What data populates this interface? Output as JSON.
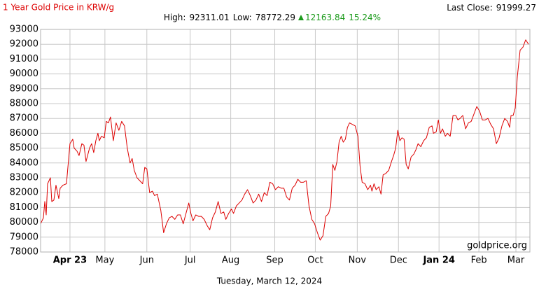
{
  "chart_data": {
    "type": "line",
    "title": "1 Year Gold Price in KRW/g",
    "last_close_label": "Last Close:",
    "last_close": 91999.27,
    "high_label": "High:",
    "high": 92311.01,
    "low_label": "Low:",
    "low": 78772.29,
    "change": 12163.84,
    "change_pct": "15.24%",
    "date": "Tuesday, March 12, 2024",
    "source": "goldprice.org",
    "color": "#dd0000",
    "grid": true,
    "xlim": [
      0,
      350
    ],
    "ylim": [
      78000,
      93000
    ],
    "yticks": [
      78000,
      79000,
      80000,
      81000,
      82000,
      83000,
      84000,
      85000,
      86000,
      87000,
      88000,
      89000,
      90000,
      91000,
      92000,
      93000
    ],
    "xticks": [
      {
        "value": 21,
        "label": "Apr 23"
      },
      {
        "value": 46,
        "label": "May"
      },
      {
        "value": 76,
        "label": "Jun"
      },
      {
        "value": 107,
        "label": "Jul"
      },
      {
        "value": 136,
        "label": "Aug"
      },
      {
        "value": 167.5,
        "label": "Sep"
      },
      {
        "value": 196.5,
        "label": "Oct"
      },
      {
        "value": 226.5,
        "label": "Nov"
      },
      {
        "value": 256,
        "label": "Dec"
      },
      {
        "value": 285,
        "label": "Jan 24"
      },
      {
        "value": 313.5,
        "label": "Feb"
      },
      {
        "value": 340,
        "label": "Mar"
      }
    ],
    "x": [
      0,
      2,
      3,
      4,
      5,
      7,
      8,
      9.5,
      11,
      13,
      14,
      16,
      18.5,
      21,
      23,
      24,
      26,
      27.5,
      29.5,
      31,
      32.5,
      35,
      36.5,
      38,
      39.5,
      41,
      42,
      43.5,
      45.5,
      47,
      48.5,
      50,
      52,
      54,
      56,
      58,
      60,
      62,
      64,
      65.5,
      67,
      69,
      71,
      73,
      74.5,
      76,
      78,
      80,
      81.5,
      83.5,
      86,
      88,
      90,
      92,
      94,
      96,
      98,
      100,
      102,
      104,
      106,
      107.5,
      109,
      111,
      113,
      115,
      117,
      119,
      121,
      123,
      125,
      127,
      129,
      131,
      132.5,
      134.5,
      136.5,
      138,
      140,
      142,
      144,
      146,
      148,
      150,
      152,
      154,
      156,
      158,
      160,
      162,
      164,
      166,
      168,
      170,
      172,
      174,
      176,
      178,
      180,
      182,
      184,
      186,
      188,
      190,
      192,
      194,
      196,
      198,
      200,
      202,
      204,
      206,
      207.5,
      209,
      210.5,
      212,
      213.5,
      215,
      216.5,
      218,
      219.5,
      221,
      223,
      225,
      227,
      228.5,
      230,
      232,
      234,
      236,
      237,
      238.5,
      240,
      242,
      243.5,
      245,
      247,
      249,
      251,
      252.5,
      254,
      255.5,
      257,
      258.5,
      260,
      261.5,
      263,
      265,
      267,
      268.5,
      270,
      272,
      274,
      276,
      278,
      280,
      281,
      283,
      284.5,
      286,
      287.5,
      289.5,
      291,
      293,
      295,
      297,
      298.5,
      300,
      302,
      304,
      306,
      308,
      310,
      312,
      314,
      316,
      318,
      320,
      322,
      324,
      326,
      328,
      330,
      332,
      334,
      335.5,
      336.5,
      338,
      339.5,
      341,
      343,
      345,
      347,
      349
    ],
    "values": [
      79900,
      80300,
      81400,
      80500,
      82600,
      83000,
      81400,
      81500,
      82500,
      81600,
      82300,
      82500,
      82600,
      85300,
      85600,
      85000,
      84800,
      84500,
      85300,
      85200,
      84100,
      85000,
      85300,
      84700,
      85500,
      86000,
      85500,
      85800,
      85700,
      86800,
      86700,
      87100,
      85500,
      86700,
      86200,
      86800,
      86500,
      85000,
      84000,
      84300,
      83500,
      83000,
      82800,
      82600,
      83700,
      83600,
      82000,
      82100,
      81800,
      81900,
      80800,
      79300,
      79900,
      80300,
      80400,
      80200,
      80500,
      80500,
      79900,
      80600,
      81300,
      80600,
      80100,
      80500,
      80400,
      80400,
      80200,
      79800,
      79500,
      80300,
      80700,
      81400,
      80600,
      80700,
      80200,
      80600,
      80900,
      80600,
      81100,
      81300,
      81500,
      81900,
      82200,
      81800,
      81300,
      81500,
      81900,
      81400,
      82000,
      81800,
      82700,
      82600,
      82200,
      82400,
      82300,
      82300,
      81700,
      81500,
      82300,
      82500,
      82900,
      82700,
      82700,
      82800,
      81100,
      80200,
      79900,
      79300,
      78800,
      79100,
      80400,
      80600,
      81100,
      83900,
      83500,
      84100,
      85400,
      85800,
      85400,
      85600,
      86400,
      86700,
      86600,
      86500,
      85800,
      83800,
      82700,
      82600,
      82200,
      82500,
      82100,
      82600,
      82200,
      82400,
      81900,
      83200,
      83300,
      83500,
      84100,
      84500,
      85000,
      86200,
      85500,
      85700,
      85600,
      83900,
      83600,
      84400,
      84600,
      84900,
      85300,
      85100,
      85500,
      85700,
      86400,
      86500,
      86000,
      86100,
      86900,
      86000,
      86300,
      85800,
      86000,
      85800,
      87200,
      87200,
      86900,
      87000,
      87200,
      86300,
      86700,
      86800,
      87300,
      87800,
      87500,
      86900,
      86900,
      87000,
      86600,
      86300,
      85300,
      85700,
      86500,
      87000,
      86800,
      86400,
      87200,
      87200,
      87700,
      89800,
      91600,
      91800,
      92300,
      92000
    ]
  }
}
